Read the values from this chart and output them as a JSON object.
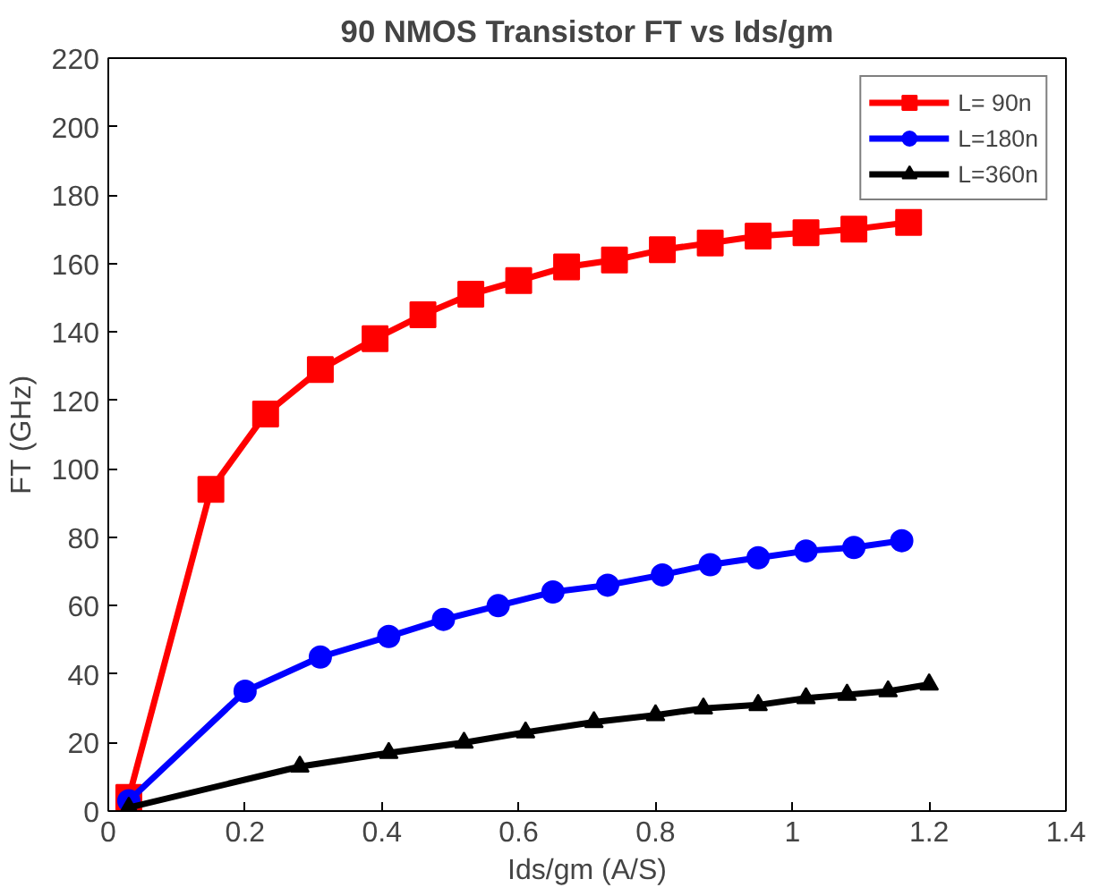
{
  "chart_data": {
    "type": "line",
    "title": "90 NMOS Transistor FT vs Ids/gm",
    "xlabel": "Ids/gm (A/S)",
    "ylabel": "FT (GHz)",
    "xlim": [
      0,
      1.4
    ],
    "xticks": [
      0,
      0.2,
      0.4,
      0.6,
      0.8,
      1,
      1.2,
      1.4
    ],
    "ylim": [
      0,
      220
    ],
    "yticks": [
      0,
      20,
      40,
      60,
      80,
      100,
      120,
      140,
      160,
      180,
      200,
      220
    ],
    "grid": false,
    "legend": "top right",
    "line_style": "solid",
    "series": [
      {
        "name": "L= 90n",
        "color": "#ff0000",
        "marker": "square",
        "x": [
          0.03,
          0.15,
          0.23,
          0.31,
          0.39,
          0.46,
          0.53,
          0.6,
          0.67,
          0.74,
          0.81,
          0.88,
          0.95,
          1.02,
          1.09,
          1.17
        ],
        "values": [
          4,
          94,
          116,
          129,
          138,
          145,
          151,
          155,
          159,
          161,
          164,
          166,
          168,
          169,
          170,
          172
        ]
      },
      {
        "name": "L=180n",
        "color": "#0000ff",
        "marker": "circle",
        "x": [
          0.03,
          0.2,
          0.31,
          0.41,
          0.49,
          0.57,
          0.65,
          0.73,
          0.81,
          0.88,
          0.95,
          1.02,
          1.09,
          1.16
        ],
        "values": [
          3,
          35,
          45,
          51,
          56,
          60,
          64,
          66,
          69,
          72,
          74,
          76,
          77,
          79
        ]
      },
      {
        "name": "L=360n",
        "color": "#000000",
        "marker": "triangle",
        "x": [
          0.03,
          0.28,
          0.41,
          0.52,
          0.61,
          0.71,
          0.8,
          0.87,
          0.95,
          1.02,
          1.08,
          1.14,
          1.2
        ],
        "values": [
          1,
          13,
          17,
          20,
          23,
          26,
          28,
          30,
          31,
          33,
          34,
          35,
          37
        ]
      }
    ]
  }
}
